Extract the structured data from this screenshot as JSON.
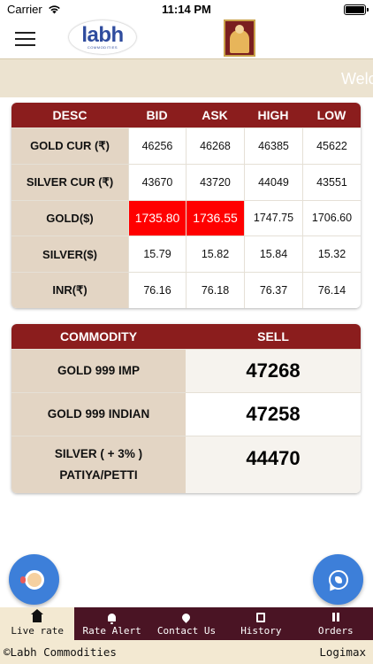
{
  "status_bar": {
    "carrier": "Carrier",
    "time": "11:14 PM"
  },
  "header": {
    "logo_text": "labh",
    "logo_sub": "COMMODITIES"
  },
  "marquee": {
    "text": "Welc"
  },
  "rate_table": {
    "headers": [
      "DESC",
      "BID",
      "ASK",
      "HIGH",
      "LOW"
    ],
    "rows": [
      {
        "desc": "GOLD CUR (₹)",
        "bid": "46256",
        "ask": "46268",
        "high": "46385",
        "low": "45622"
      },
      {
        "desc": "SILVER CUR (₹)",
        "bid": "43670",
        "ask": "43720",
        "high": "44049",
        "low": "43551"
      },
      {
        "desc": "GOLD($)",
        "bid": "1735.80",
        "ask": "1736.55",
        "high": "1747.75",
        "low": "1706.60"
      },
      {
        "desc": "SILVER($)",
        "bid": "15.79",
        "ask": "15.82",
        "high": "15.84",
        "low": "15.32"
      },
      {
        "desc": "INR(₹)",
        "bid": "76.16",
        "ask": "76.18",
        "high": "76.37",
        "low": "76.14"
      }
    ],
    "highlight_color": "#ff0000"
  },
  "commodity_table": {
    "headers": [
      "COMMODITY",
      "SELL"
    ],
    "rows": [
      {
        "name": "GOLD 999 IMP",
        "sell": "47268"
      },
      {
        "name": "GOLD 999 INDIAN",
        "sell": "47258"
      },
      {
        "name_line1": "SILVER ( + 3% )",
        "name_line2": "PATIYA/PETTI",
        "sell": "44470"
      }
    ]
  },
  "fabs": {
    "support": "support-icon",
    "whatsapp": "whatsapp-icon"
  },
  "tabs": [
    {
      "label": "Live rate",
      "icon": "home-icon",
      "active": true
    },
    {
      "label": "Rate Alert",
      "icon": "bell-icon"
    },
    {
      "label": "Contact Us",
      "icon": "location-pin-icon"
    },
    {
      "label": "History",
      "icon": "history-icon"
    },
    {
      "label": "Orders",
      "icon": "pause-icon"
    }
  ],
  "footer": {
    "left": "©Labh Commodities",
    "right": "Logimax"
  },
  "colors": {
    "brand_maroon": "#8b1d1d",
    "tab_bar": "#4a1424",
    "cream": "#f3e9d2",
    "desc_cell": "#e3d5c4",
    "fab_blue": "#3d7fd9"
  }
}
